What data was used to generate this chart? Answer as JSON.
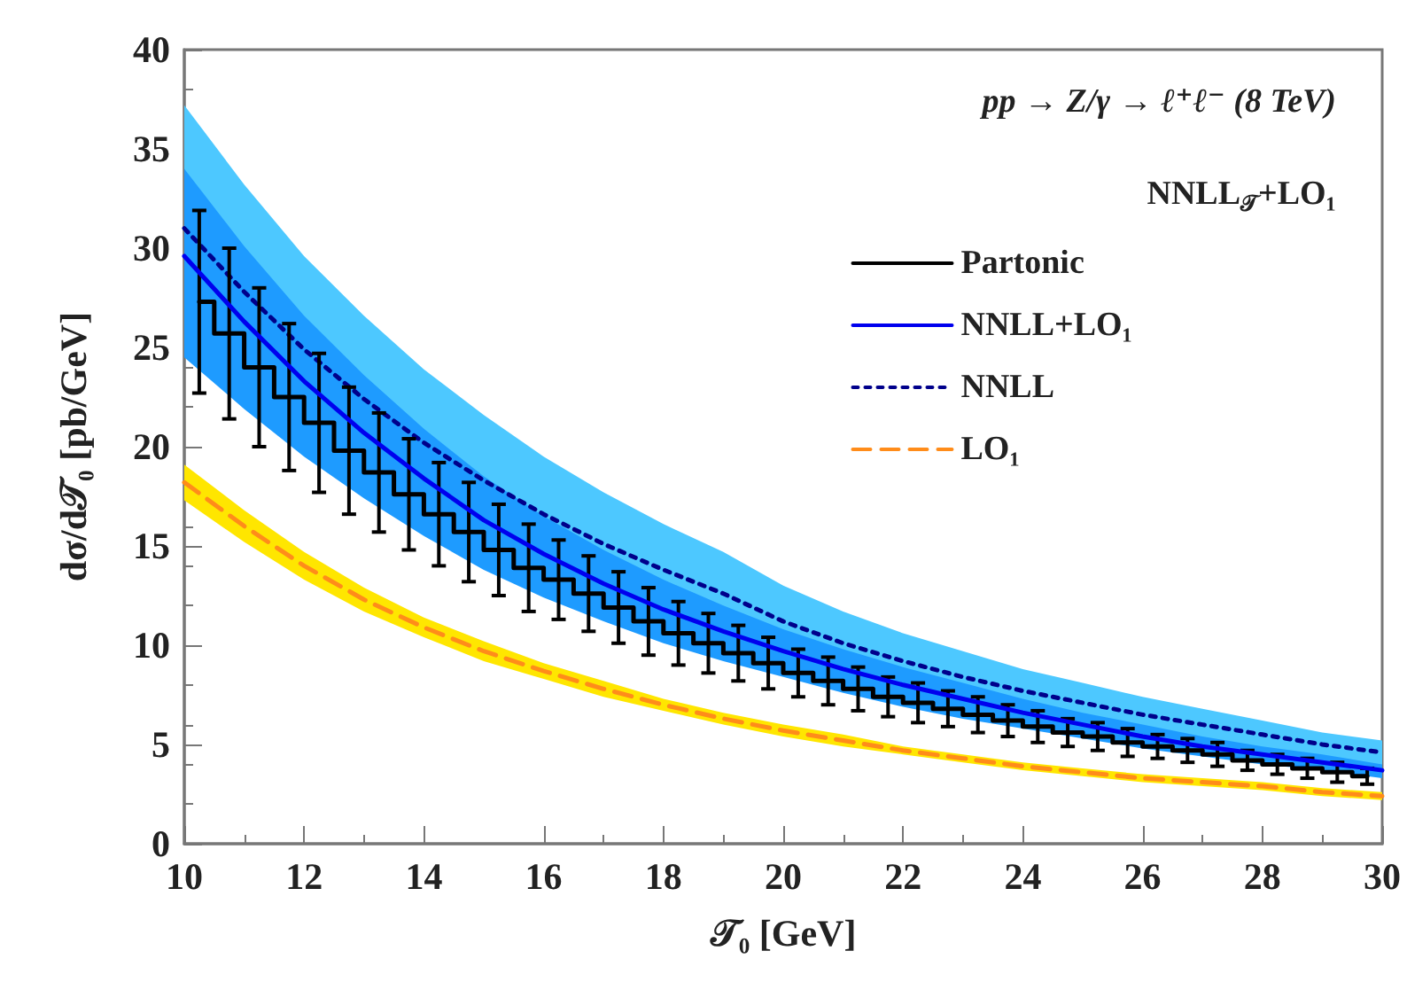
{
  "chart_data": {
    "type": "line",
    "xlabel": "𝒯₀ [GeV]",
    "ylabel": "dσ/d𝒯₀ [pb/GeV]",
    "legend_title": "NNLL$_{𝒯}$+LO₁",
    "annotations": [
      "pp → Z/γ → ℓ⁺ℓ⁻ (8 TeV)"
    ],
    "xlim": [
      10,
      30
    ],
    "xticks": [
      10,
      12,
      14,
      16,
      18,
      20,
      22,
      24,
      26,
      28,
      30
    ],
    "ylim": [
      0,
      40
    ],
    "yticks": [
      0,
      5,
      10,
      15,
      20,
      25,
      30,
      35,
      40
    ],
    "grid": false,
    "legend": "top right",
    "marker": "none",
    "series": [
      {
        "name": "Partonic",
        "type": "step",
        "line_style": "solid",
        "color": "#000000",
        "x": [
          10.25,
          10.75,
          11.25,
          11.75,
          12.25,
          12.75,
          13.25,
          13.75,
          14.25,
          14.75,
          15.25,
          15.75,
          16.25,
          16.75,
          17.25,
          17.75,
          18.25,
          18.75,
          19.25,
          19.75,
          20.25,
          20.75,
          21.25,
          21.75,
          22.25,
          22.75,
          23.25,
          23.75,
          24.25,
          24.75,
          25.25,
          25.75,
          26.25,
          26.75,
          27.25,
          27.75,
          28.25,
          28.75,
          29.25,
          29.75
        ],
        "values": [
          27.3,
          25.7,
          24.0,
          22.5,
          21.2,
          19.8,
          18.7,
          17.6,
          16.6,
          15.7,
          14.8,
          13.9,
          13.3,
          12.6,
          11.9,
          11.2,
          10.6,
          10.1,
          9.6,
          9.1,
          8.6,
          8.2,
          7.8,
          7.4,
          7.1,
          6.8,
          6.5,
          6.2,
          5.9,
          5.6,
          5.4,
          5.1,
          4.9,
          4.7,
          4.5,
          4.2,
          4.0,
          3.8,
          3.6,
          3.4
        ],
        "errors": [
          4.6,
          4.3,
          4.0,
          3.7,
          3.5,
          3.2,
          3.0,
          2.8,
          2.6,
          2.5,
          2.3,
          2.2,
          2.0,
          1.9,
          1.8,
          1.7,
          1.6,
          1.5,
          1.4,
          1.3,
          1.2,
          1.2,
          1.1,
          1.0,
          1.0,
          0.9,
          0.9,
          0.8,
          0.8,
          0.7,
          0.7,
          0.7,
          0.6,
          0.6,
          0.6,
          0.5,
          0.5,
          0.5,
          0.5,
          0.4
        ]
      },
      {
        "name": "NNLL+LO₁",
        "type": "line",
        "line_style": "solid",
        "color": "#0000ee",
        "x": [
          10,
          11,
          12,
          13,
          14,
          15,
          16,
          17,
          18,
          19,
          20,
          21,
          22,
          23,
          24,
          25,
          26,
          27,
          28,
          29,
          30
        ],
        "values": [
          29.6,
          26.3,
          23.3,
          20.7,
          18.4,
          16.3,
          14.6,
          13.1,
          11.8,
          10.7,
          9.7,
          8.8,
          8.0,
          7.3,
          6.6,
          6.0,
          5.4,
          4.9,
          4.5,
          4.1,
          3.7
        ],
        "lower": [
          24.5,
          21.9,
          19.5,
          17.4,
          15.5,
          13.8,
          12.4,
          11.2,
          10.1,
          9.2,
          8.4,
          7.6,
          6.9,
          6.3,
          5.8,
          5.3,
          4.8,
          4.4,
          4.0,
          3.7,
          3.3
        ],
        "upper": [
          34.0,
          30.1,
          26.6,
          23.6,
          20.9,
          18.5,
          16.5,
          14.8,
          13.3,
          12.0,
          10.8,
          9.8,
          8.9,
          8.1,
          7.3,
          6.6,
          6.0,
          5.4,
          4.9,
          4.5,
          4.0
        ]
      },
      {
        "name": "NNLL",
        "type": "line",
        "line_style": "dotted",
        "color": "#00008b",
        "x": [
          10,
          11,
          12,
          13,
          14,
          15,
          16,
          17,
          18,
          19,
          20,
          21,
          22,
          23,
          24,
          25,
          26,
          27,
          28,
          29,
          30
        ],
        "values": [
          31.0,
          27.8,
          24.9,
          22.4,
          20.2,
          18.3,
          16.6,
          15.1,
          13.8,
          12.6,
          11.2,
          10.1,
          9.2,
          8.4,
          7.7,
          7.1,
          6.5,
          6.0,
          5.5,
          5.0,
          4.6
        ],
        "lower": [
          25.4,
          22.9,
          20.5,
          18.5,
          16.7,
          15.1,
          13.7,
          12.5,
          11.4,
          10.4,
          9.2,
          8.3,
          7.6,
          6.9,
          6.3,
          5.8,
          5.3,
          4.9,
          4.5,
          4.0,
          3.7
        ],
        "upper": [
          37.2,
          33.2,
          29.6,
          26.6,
          23.9,
          21.6,
          19.5,
          17.7,
          16.1,
          14.7,
          13.0,
          11.7,
          10.6,
          9.7,
          8.8,
          8.1,
          7.4,
          6.8,
          6.2,
          5.6,
          5.2
        ]
      },
      {
        "name": "LO₁",
        "type": "line",
        "line_style": "dashed",
        "color": "#ff8c1a",
        "x": [
          10,
          11,
          12,
          13,
          14,
          15,
          16,
          17,
          18,
          19,
          20,
          21,
          22,
          23,
          24,
          25,
          26,
          27,
          28,
          29,
          30
        ],
        "values": [
          18.2,
          16.0,
          14.0,
          12.3,
          10.9,
          9.7,
          8.7,
          7.8,
          7.0,
          6.3,
          5.7,
          5.2,
          4.7,
          4.3,
          3.9,
          3.6,
          3.3,
          3.1,
          2.9,
          2.6,
          2.4
        ],
        "lower": [
          17.3,
          15.2,
          13.3,
          11.7,
          10.4,
          9.2,
          8.3,
          7.4,
          6.7,
          6.0,
          5.4,
          4.9,
          4.5,
          4.1,
          3.7,
          3.4,
          3.1,
          2.9,
          2.7,
          2.4,
          2.2
        ],
        "upper": [
          19.1,
          16.8,
          14.7,
          12.9,
          11.4,
          10.2,
          9.1,
          8.2,
          7.3,
          6.6,
          6.0,
          5.5,
          4.9,
          4.5,
          4.1,
          3.8,
          3.5,
          3.3,
          3.1,
          2.8,
          2.6
        ]
      }
    ]
  }
}
